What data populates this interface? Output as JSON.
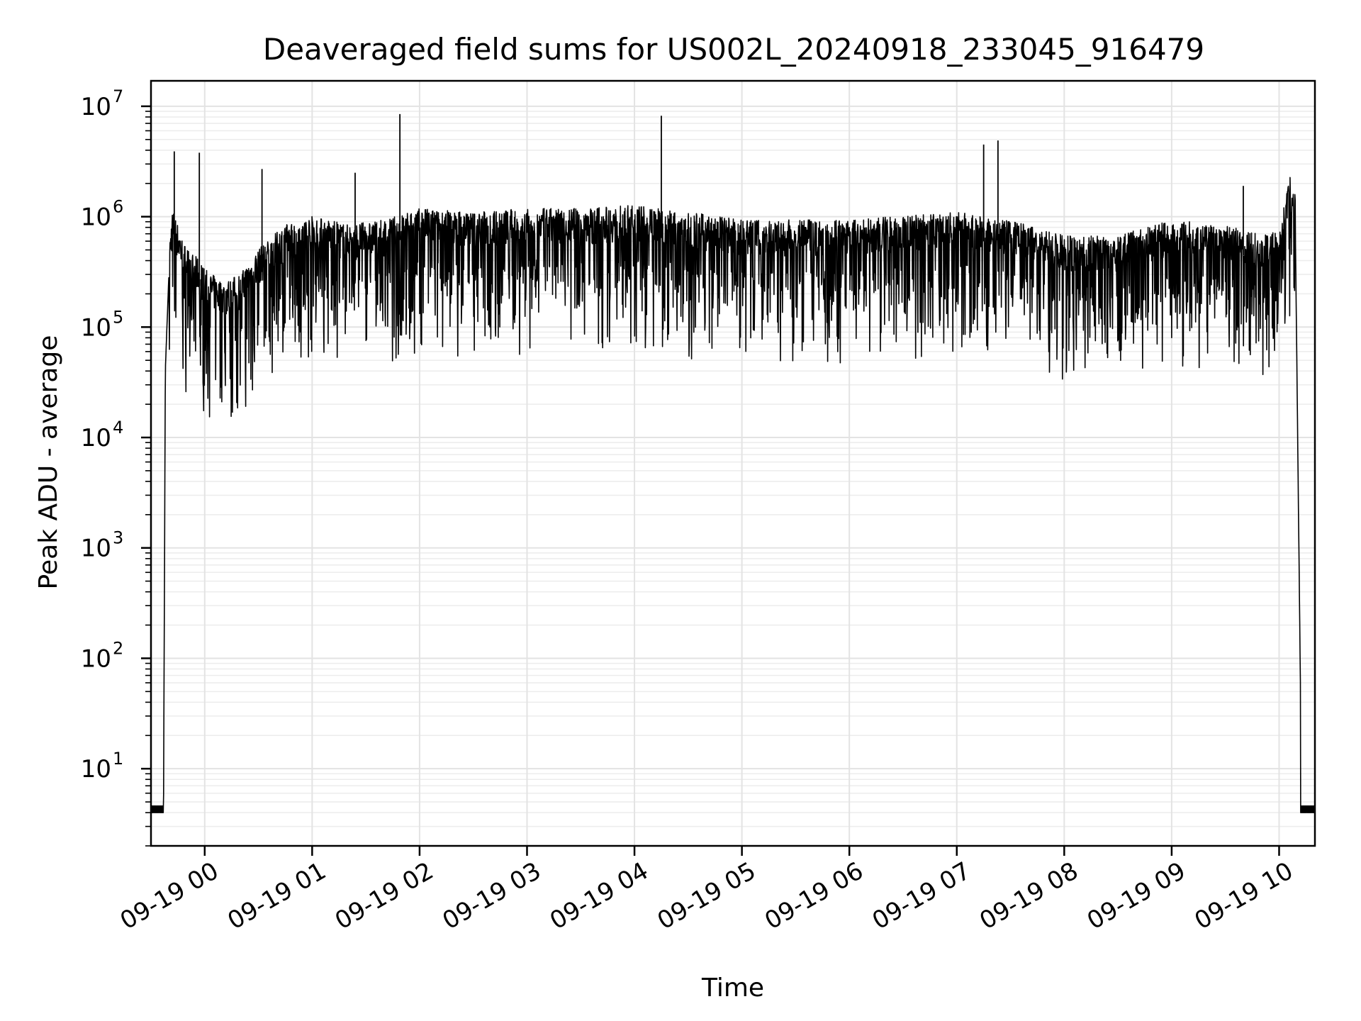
{
  "chart_data": {
    "type": "line",
    "title": "Deaveraged field sums for US002L_20240918_233045_916479",
    "xlabel": "Time",
    "ylabel": "Peak ADU - average",
    "yscale": "log",
    "ylim": [
      2,
      17000000
    ],
    "xlim": [
      "2024-09-18 23:30",
      "2024-09-19 10:20"
    ],
    "grid": true,
    "x_ticks": [
      "09-19 00",
      "09-19 01",
      "09-19 02",
      "09-19 03",
      "09-19 04",
      "09-19 05",
      "09-19 06",
      "09-19 07",
      "09-19 08",
      "09-19 09",
      "09-19 10"
    ],
    "y_ticks": [
      {
        "base": "10",
        "exp": "1",
        "value": 10
      },
      {
        "base": "10",
        "exp": "2",
        "value": 100
      },
      {
        "base": "10",
        "exp": "3",
        "value": 1000
      },
      {
        "base": "10",
        "exp": "4",
        "value": 10000
      },
      {
        "base": "10",
        "exp": "5",
        "value": 100000
      },
      {
        "base": "10",
        "exp": "6",
        "value": 1000000
      },
      {
        "base": "10",
        "exp": "7",
        "value": 10000000
      }
    ],
    "series": [
      {
        "color": "#000000",
        "x": [
          "2024-09-18 23:30",
          "2024-09-18 23:37",
          "2024-09-18 23:38",
          "2024-09-18 23:40",
          "2024-09-18 23:42",
          "2024-09-18 23:45",
          "2024-09-18 23:48",
          "2024-09-18 23:52",
          "2024-09-18 23:56",
          "2024-09-19 00:00",
          "2024-09-19 00:10",
          "2024-09-19 00:20",
          "2024-09-19 00:30",
          "2024-09-19 00:45",
          "2024-09-19 01:00",
          "2024-09-19 01:20",
          "2024-09-19 01:40",
          "2024-09-19 02:00",
          "2024-09-19 02:30",
          "2024-09-19 03:00",
          "2024-09-19 03:30",
          "2024-09-19 04:00",
          "2024-09-19 04:30",
          "2024-09-19 05:00",
          "2024-09-19 05:30",
          "2024-09-19 06:00",
          "2024-09-19 06:30",
          "2024-09-19 07:00",
          "2024-09-19 07:30",
          "2024-09-19 08:00",
          "2024-09-19 08:30",
          "2024-09-19 09:00",
          "2024-09-19 09:30",
          "2024-09-19 09:50",
          "2024-09-19 10:00",
          "2024-09-19 10:03",
          "2024-09-19 10:06",
          "2024-09-19 10:09",
          "2024-09-19 10:12",
          "2024-09-19 10:14",
          "2024-09-19 10:20"
        ],
        "y": [
          4,
          4,
          40000,
          300000,
          700000,
          500000,
          350000,
          280000,
          250000,
          200000,
          150000,
          180000,
          300000,
          500000,
          600000,
          500000,
          550000,
          700000,
          650000,
          700000,
          700000,
          750000,
          650000,
          550000,
          550000,
          550000,
          600000,
          650000,
          550000,
          400000,
          400000,
          550000,
          500000,
          400000,
          450000,
          800000,
          1400000,
          1000000,
          40,
          4,
          4
        ],
        "spikes": [
          {
            "x": "2024-09-18 23:43",
            "y": 3900000
          },
          {
            "x": "2024-09-18 23:57",
            "y": 3800000
          },
          {
            "x": "2024-09-19 00:32",
            "y": 2700000
          },
          {
            "x": "2024-09-19 01:24",
            "y": 2500000
          },
          {
            "x": "2024-09-19 01:49",
            "y": 8500000
          },
          {
            "x": "2024-09-19 04:15",
            "y": 8200000
          },
          {
            "x": "2024-09-19 07:15",
            "y": 4500000
          },
          {
            "x": "2024-09-19 07:23",
            "y": 4900000
          },
          {
            "x": "2024-09-19 09:40",
            "y": 1900000
          }
        ]
      }
    ]
  }
}
